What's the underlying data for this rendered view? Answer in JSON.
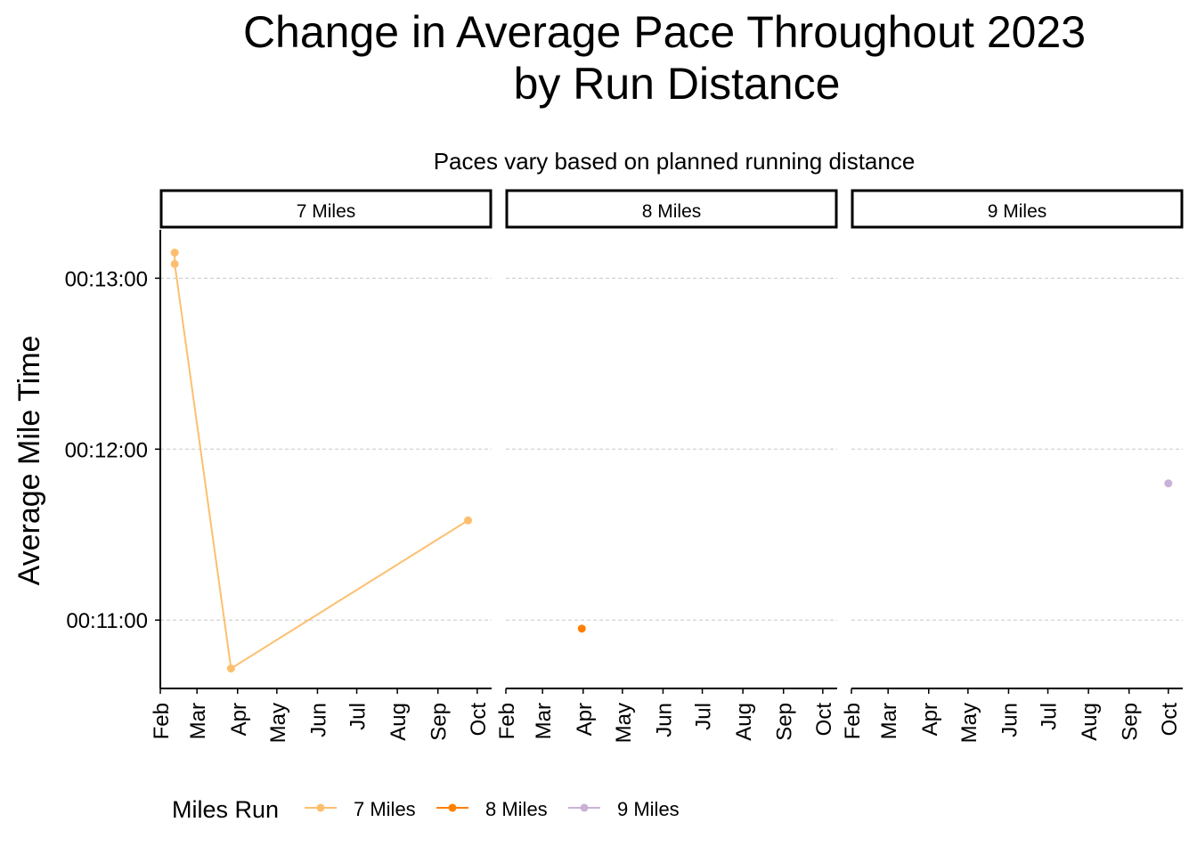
{
  "chart_data": {
    "type": "line",
    "title_lines": [
      "Change in Average Pace Throughout 2023",
      "by Run Distance"
    ],
    "subtitle": "Paces vary based on planned running distance",
    "ylabel": "Average Mile Time",
    "xlabel": "",
    "x_ticks": [
      "Feb",
      "Mar",
      "Apr",
      "May",
      "Jun",
      "Jul",
      "Aug",
      "Sep",
      "Oct"
    ],
    "xlim": [
      "2023-02-01",
      "2023-10-12"
    ],
    "y_ticks": [
      "00:13:00",
      "00:12:00",
      "00:11:00"
    ],
    "y_tick_seconds": [
      780,
      720,
      660
    ],
    "ylim_seconds": [
      636,
      797
    ],
    "grid": "horizontal-dashed",
    "legend": {
      "title": "Miles Run",
      "position": "bottom-left",
      "entries": [
        "7 Miles",
        "8 Miles",
        "9 Miles"
      ]
    },
    "panels": [
      {
        "label": "7 Miles",
        "color": "#fdbf6f",
        "points": [
          {
            "date": "2023-02-12",
            "pace": "00:13:09",
            "seconds": 789
          },
          {
            "date": "2023-02-12",
            "pace": "00:13:05",
            "seconds": 785
          },
          {
            "date": "2023-03-27",
            "pace": "00:10:43",
            "seconds": 643
          },
          {
            "date": "2023-09-24",
            "pace": "00:11:35",
            "seconds": 695
          }
        ]
      },
      {
        "label": "8 Miles",
        "color": "#ff7f00",
        "points": [
          {
            "date": "2023-03-31",
            "pace": "00:10:57",
            "seconds": 657
          }
        ]
      },
      {
        "label": "9 Miles",
        "color": "#cab2d6",
        "points": [
          {
            "date": "2023-10-01",
            "pace": "00:11:48",
            "seconds": 708
          }
        ]
      }
    ]
  }
}
